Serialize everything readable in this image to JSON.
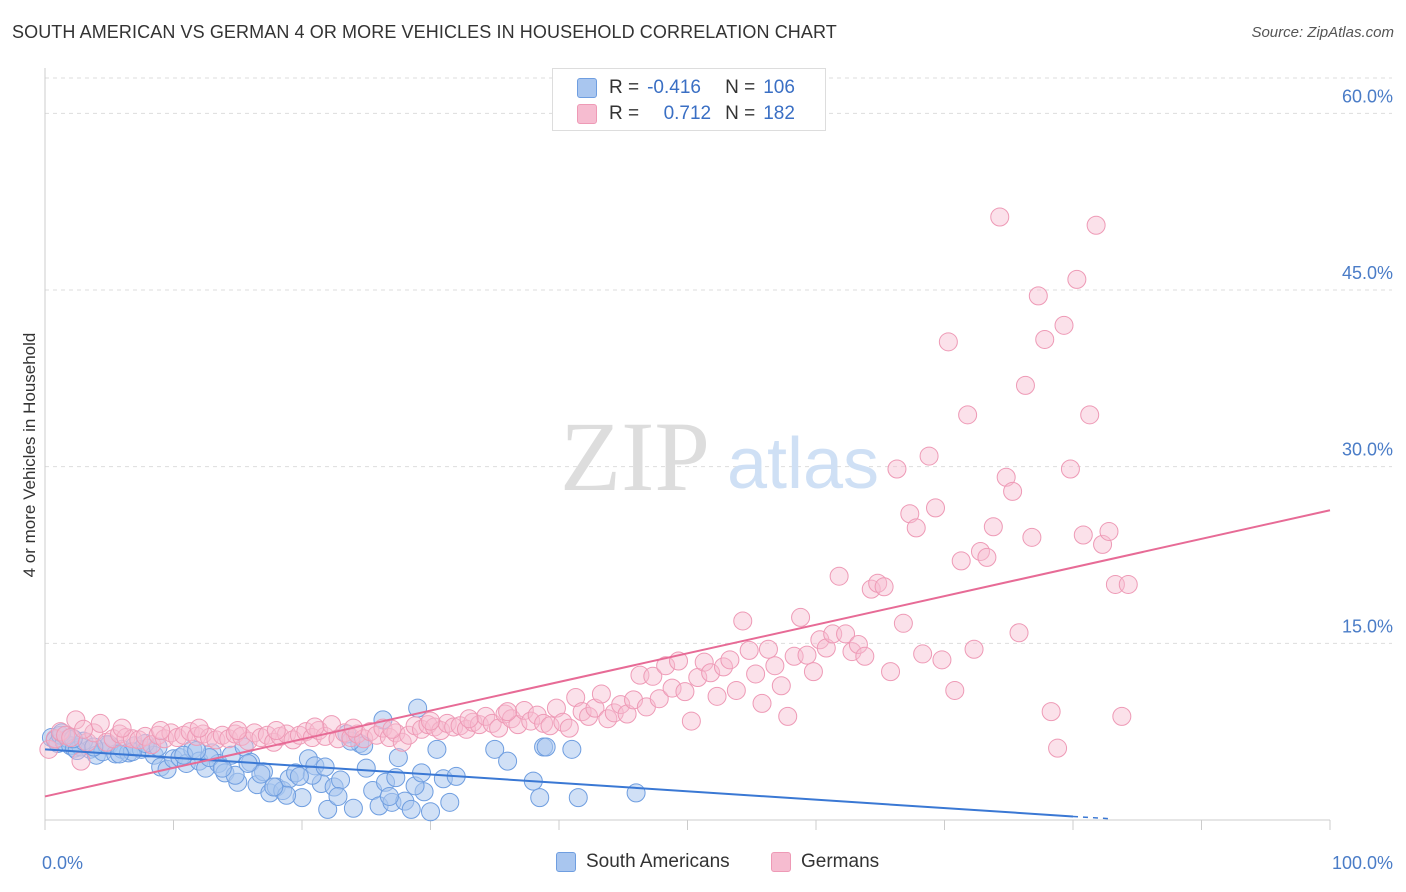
{
  "header": {
    "title": "SOUTH AMERICAN VS GERMAN 4 OR MORE VEHICLES IN HOUSEHOLD CORRELATION CHART",
    "source": "Source: ZipAtlas.com"
  },
  "watermark": {
    "zip": "ZIP",
    "atlas": "atlas"
  },
  "legend": {
    "rows": [
      {
        "r_label": "R =",
        "r_value": "-0.416",
        "n_label": "N =",
        "n_value": "106"
      },
      {
        "r_label": "R =",
        "r_value": "0.712",
        "n_label": "N =",
        "n_value": "182"
      }
    ]
  },
  "bottom_legend": {
    "items": [
      "South Americans",
      "Germans"
    ]
  },
  "colors": {
    "south_american_fill": "#a9c6ef",
    "south_american_stroke": "#6f9ee0",
    "south_american_line": "#3a78d4",
    "german_fill": "#f6bcd0",
    "german_stroke": "#ee9ab6",
    "german_line": "#e76b96",
    "tick_label": "#4a7cc7",
    "grid": "#dddddd"
  },
  "chart_data": {
    "type": "scatter",
    "title": "SOUTH AMERICAN VS GERMAN 4 OR MORE VEHICLES IN HOUSEHOLD CORRELATION CHART",
    "xlabel": "",
    "ylabel": "4 or more Vehicles in Household",
    "xlim": [
      0,
      100
    ],
    "ylim": [
      0,
      63
    ],
    "x_tick_labels": [
      "0.0%",
      "100.0%"
    ],
    "y_tick_labels": [
      "15.0%",
      "30.0%",
      "45.0%",
      "60.0%"
    ],
    "y_ticks": [
      15,
      30,
      45,
      60
    ],
    "grid": true,
    "legend_position": "top-center",
    "series": [
      {
        "name": "South Americans",
        "r": -0.416,
        "n": 106,
        "trend": {
          "x": [
            0,
            80
          ],
          "y": [
            6.0,
            0.3
          ]
        },
        "points": [
          [
            0.5,
            7.0
          ],
          [
            0.8,
            6.8
          ],
          [
            1.0,
            6.5
          ],
          [
            1.2,
            7.2
          ],
          [
            1.5,
            6.6
          ],
          [
            1.8,
            6.9
          ],
          [
            2.0,
            6.3
          ],
          [
            2.3,
            6.1
          ],
          [
            2.8,
            6.2
          ],
          [
            3.5,
            6.0
          ],
          [
            4.0,
            5.5
          ],
          [
            4.5,
            5.8
          ],
          [
            5.0,
            6.4
          ],
          [
            5.5,
            5.6
          ],
          [
            6.0,
            6.0
          ],
          [
            6.5,
            5.7
          ],
          [
            7.0,
            6.3
          ],
          [
            7.5,
            6.0
          ],
          [
            8.0,
            6.1
          ],
          [
            8.5,
            5.5
          ],
          [
            9.0,
            4.5
          ],
          [
            9.5,
            4.3
          ],
          [
            10.0,
            5.2
          ],
          [
            10.5,
            5.3
          ],
          [
            11.0,
            4.8
          ],
          [
            11.5,
            6.0
          ],
          [
            12.0,
            5.0
          ],
          [
            12.5,
            4.4
          ],
          [
            13.0,
            5.7
          ],
          [
            13.5,
            4.8
          ],
          [
            14.0,
            4.0
          ],
          [
            14.5,
            5.5
          ],
          [
            15.0,
            3.2
          ],
          [
            15.5,
            6.2
          ],
          [
            16.0,
            4.9
          ],
          [
            16.5,
            3.0
          ],
          [
            17.0,
            4.1
          ],
          [
            17.5,
            2.3
          ],
          [
            18.0,
            2.8
          ],
          [
            18.5,
            2.5
          ],
          [
            19.0,
            3.5
          ],
          [
            19.5,
            4.0
          ],
          [
            20.0,
            1.9
          ],
          [
            20.5,
            5.2
          ],
          [
            21.0,
            4.6
          ],
          [
            21.5,
            3.1
          ],
          [
            22.0,
            0.9
          ],
          [
            22.5,
            2.8
          ],
          [
            23.0,
            3.4
          ],
          [
            23.5,
            7.3
          ],
          [
            24.0,
            1.0
          ],
          [
            24.5,
            6.5
          ],
          [
            25.0,
            4.4
          ],
          [
            25.5,
            2.5
          ],
          [
            26.0,
            1.2
          ],
          [
            26.5,
            3.2
          ],
          [
            27.0,
            1.5
          ],
          [
            27.5,
            5.3
          ],
          [
            28.0,
            1.6
          ],
          [
            28.5,
            0.9
          ],
          [
            29.0,
            9.5
          ],
          [
            29.5,
            2.4
          ],
          [
            30.0,
            0.7
          ],
          [
            30.5,
            6.0
          ],
          [
            31.0,
            3.5
          ],
          [
            31.5,
            1.5
          ],
          [
            32.0,
            3.7
          ],
          [
            35.0,
            6.0
          ],
          [
            36.0,
            5.0
          ],
          [
            38.0,
            3.3
          ],
          [
            38.5,
            1.9
          ],
          [
            38.8,
            6.2
          ],
          [
            39.0,
            6.2
          ],
          [
            41.0,
            6.0
          ],
          [
            41.5,
            1.9
          ],
          [
            46.0,
            2.3
          ],
          [
            2.5,
            5.9
          ],
          [
            3.0,
            6.7
          ],
          [
            4.8,
            6.4
          ],
          [
            6.8,
            5.8
          ],
          [
            7.8,
            6.5
          ],
          [
            10.8,
            5.5
          ],
          [
            12.8,
            5.3
          ],
          [
            14.8,
            3.8
          ],
          [
            16.8,
            3.9
          ],
          [
            18.8,
            2.1
          ],
          [
            20.8,
            3.8
          ],
          [
            22.8,
            2.0
          ],
          [
            24.8,
            6.3
          ],
          [
            26.8,
            2.0
          ],
          [
            28.8,
            2.9
          ],
          [
            1.3,
            7.4
          ],
          [
            2.2,
            6.9
          ],
          [
            3.8,
            6.2
          ],
          [
            5.8,
            5.6
          ],
          [
            8.8,
            6.2
          ],
          [
            11.8,
            5.9
          ],
          [
            13.8,
            4.4
          ],
          [
            15.8,
            4.8
          ],
          [
            17.8,
            2.8
          ],
          [
            19.8,
            3.7
          ],
          [
            21.8,
            4.5
          ],
          [
            23.8,
            6.7
          ],
          [
            26.3,
            8.5
          ],
          [
            27.3,
            3.6
          ],
          [
            29.3,
            4.0
          ]
        ]
      },
      {
        "name": "Germans",
        "r": 0.712,
        "n": 182,
        "trend": {
          "x": [
            0,
            100
          ],
          "y": [
            2.0,
            26.3
          ]
        },
        "points": [
          [
            0.3,
            6.0
          ],
          [
            0.8,
            6.9
          ],
          [
            1.2,
            7.5
          ],
          [
            1.6,
            7.2
          ],
          [
            2.0,
            7.0
          ],
          [
            2.4,
            8.5
          ],
          [
            2.8,
            5.0
          ],
          [
            3.3,
            6.6
          ],
          [
            3.8,
            7.4
          ],
          [
            4.3,
            8.2
          ],
          [
            4.8,
            6.6
          ],
          [
            5.3,
            6.9
          ],
          [
            5.8,
            7.3
          ],
          [
            6.3,
            7.0
          ],
          [
            6.8,
            6.9
          ],
          [
            7.3,
            6.8
          ],
          [
            7.8,
            7.1
          ],
          [
            8.3,
            6.4
          ],
          [
            8.8,
            7.2
          ],
          [
            9.3,
            6.9
          ],
          [
            9.8,
            7.4
          ],
          [
            10.3,
            7.0
          ],
          [
            10.8,
            7.2
          ],
          [
            11.3,
            7.5
          ],
          [
            11.8,
            7.1
          ],
          [
            12.3,
            7.3
          ],
          [
            12.8,
            7.0
          ],
          [
            13.3,
            6.8
          ],
          [
            13.8,
            7.2
          ],
          [
            14.3,
            6.9
          ],
          [
            14.8,
            7.3
          ],
          [
            15.3,
            7.1
          ],
          [
            15.8,
            6.7
          ],
          [
            16.3,
            7.4
          ],
          [
            16.8,
            7.0
          ],
          [
            17.3,
            7.2
          ],
          [
            17.8,
            6.6
          ],
          [
            18.3,
            7.1
          ],
          [
            18.8,
            7.3
          ],
          [
            19.3,
            6.8
          ],
          [
            19.8,
            7.2
          ],
          [
            20.3,
            7.5
          ],
          [
            20.8,
            7.0
          ],
          [
            21.3,
            7.6
          ],
          [
            21.8,
            7.1
          ],
          [
            22.3,
            8.1
          ],
          [
            22.8,
            6.9
          ],
          [
            23.3,
            7.4
          ],
          [
            23.8,
            7.0
          ],
          [
            24.3,
            7.3
          ],
          [
            24.8,
            6.9
          ],
          [
            25.3,
            7.5
          ],
          [
            25.8,
            7.2
          ],
          [
            26.3,
            7.8
          ],
          [
            26.8,
            7.0
          ],
          [
            27.3,
            7.4
          ],
          [
            27.8,
            6.6
          ],
          [
            28.3,
            7.2
          ],
          [
            28.8,
            8.0
          ],
          [
            29.3,
            7.7
          ],
          [
            29.8,
            8.1
          ],
          [
            30.3,
            7.9
          ],
          [
            30.8,
            7.6
          ],
          [
            31.3,
            8.2
          ],
          [
            31.8,
            7.9
          ],
          [
            32.3,
            8.0
          ],
          [
            32.8,
            7.7
          ],
          [
            33.3,
            8.3
          ],
          [
            33.8,
            8.1
          ],
          [
            34.3,
            8.8
          ],
          [
            34.8,
            8.2
          ],
          [
            35.3,
            7.8
          ],
          [
            35.8,
            9.0
          ],
          [
            36.3,
            8.6
          ],
          [
            36.8,
            8.1
          ],
          [
            37.3,
            9.3
          ],
          [
            37.8,
            8.4
          ],
          [
            38.3,
            8.9
          ],
          [
            38.8,
            8.2
          ],
          [
            39.3,
            8.0
          ],
          [
            39.8,
            9.5
          ],
          [
            40.3,
            8.3
          ],
          [
            40.8,
            7.8
          ],
          [
            41.3,
            10.4
          ],
          [
            41.8,
            9.2
          ],
          [
            42.3,
            8.8
          ],
          [
            42.8,
            9.5
          ],
          [
            43.3,
            10.7
          ],
          [
            43.8,
            8.6
          ],
          [
            44.3,
            9.1
          ],
          [
            44.8,
            9.8
          ],
          [
            45.3,
            9.0
          ],
          [
            45.8,
            10.2
          ],
          [
            46.3,
            12.3
          ],
          [
            46.8,
            9.6
          ],
          [
            47.3,
            12.2
          ],
          [
            47.8,
            10.3
          ],
          [
            48.3,
            13.1
          ],
          [
            48.8,
            11.2
          ],
          [
            49.3,
            13.5
          ],
          [
            49.8,
            10.9
          ],
          [
            50.3,
            8.4
          ],
          [
            50.8,
            12.1
          ],
          [
            51.3,
            13.4
          ],
          [
            51.8,
            12.5
          ],
          [
            52.3,
            10.5
          ],
          [
            52.8,
            13.0
          ],
          [
            53.3,
            13.6
          ],
          [
            53.8,
            11.0
          ],
          [
            54.3,
            16.9
          ],
          [
            54.8,
            14.4
          ],
          [
            55.3,
            12.4
          ],
          [
            55.8,
            9.9
          ],
          [
            56.3,
            14.5
          ],
          [
            56.8,
            13.1
          ],
          [
            57.3,
            11.4
          ],
          [
            57.8,
            8.8
          ],
          [
            58.3,
            13.9
          ],
          [
            58.8,
            17.2
          ],
          [
            59.3,
            14.0
          ],
          [
            59.8,
            12.6
          ],
          [
            60.3,
            15.3
          ],
          [
            60.8,
            14.6
          ],
          [
            61.3,
            15.8
          ],
          [
            61.8,
            20.7
          ],
          [
            62.3,
            15.8
          ],
          [
            62.8,
            14.3
          ],
          [
            63.3,
            14.9
          ],
          [
            63.8,
            13.9
          ],
          [
            64.3,
            19.6
          ],
          [
            64.8,
            20.1
          ],
          [
            65.3,
            19.8
          ],
          [
            65.8,
            12.6
          ],
          [
            66.3,
            29.8
          ],
          [
            66.8,
            16.7
          ],
          [
            67.3,
            26.0
          ],
          [
            67.8,
            24.8
          ],
          [
            68.3,
            14.1
          ],
          [
            68.8,
            30.9
          ],
          [
            69.3,
            26.5
          ],
          [
            69.8,
            13.6
          ],
          [
            70.3,
            40.6
          ],
          [
            70.8,
            11.0
          ],
          [
            71.3,
            22.0
          ],
          [
            71.8,
            34.4
          ],
          [
            72.3,
            14.5
          ],
          [
            72.8,
            22.8
          ],
          [
            73.3,
            22.3
          ],
          [
            73.8,
            24.9
          ],
          [
            74.3,
            51.2
          ],
          [
            74.8,
            29.1
          ],
          [
            75.3,
            27.9
          ],
          [
            75.8,
            15.9
          ],
          [
            76.3,
            36.9
          ],
          [
            76.8,
            24.0
          ],
          [
            77.3,
            44.5
          ],
          [
            77.8,
            40.8
          ],
          [
            78.3,
            9.2
          ],
          [
            78.8,
            6.1
          ],
          [
            79.3,
            42.0
          ],
          [
            79.8,
            29.8
          ],
          [
            80.3,
            45.9
          ],
          [
            80.8,
            24.2
          ],
          [
            81.3,
            34.4
          ],
          [
            81.8,
            50.5
          ],
          [
            82.3,
            23.4
          ],
          [
            82.8,
            24.5
          ],
          [
            83.3,
            20.0
          ],
          [
            83.8,
            8.8
          ],
          [
            84.3,
            20.0
          ],
          [
            3.0,
            7.7
          ],
          [
            6.0,
            7.8
          ],
          [
            9.0,
            7.6
          ],
          [
            12.0,
            7.8
          ],
          [
            15.0,
            7.6
          ],
          [
            18.0,
            7.6
          ],
          [
            21.0,
            7.9
          ],
          [
            24.0,
            7.8
          ],
          [
            27.0,
            7.7
          ],
          [
            30.0,
            8.4
          ],
          [
            33.0,
            8.6
          ],
          [
            36.0,
            9.2
          ]
        ]
      }
    ]
  }
}
